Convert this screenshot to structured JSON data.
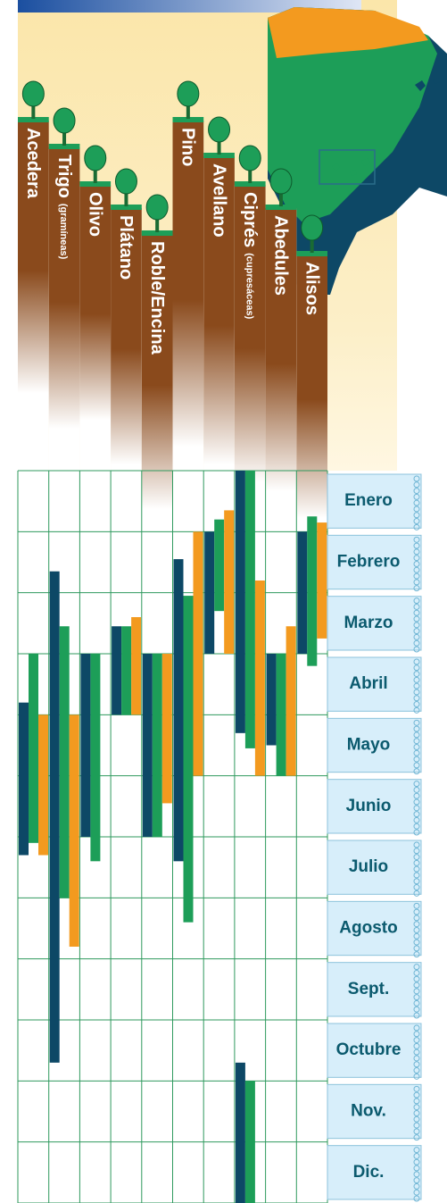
{
  "chart_data": {
    "type": "range",
    "categories": [
      "Acedera",
      "Trigo",
      "Olivo",
      "Plátano",
      "Roble/Encina",
      "Pino",
      "Avellano",
      "Ciprés",
      "Abedules",
      "Alisos"
    ],
    "category_notes": [
      null,
      "(gramíneas)",
      null,
      null,
      null,
      null,
      null,
      "(cupresáceas)",
      null,
      null
    ],
    "months": [
      "Enero",
      "Febrero",
      "Marzo",
      "Abril",
      "Mayo",
      "Junio",
      "Julio",
      "Agosto",
      "Sept.",
      "Octubre",
      "Nov.",
      "Dic."
    ],
    "ylim": [
      0,
      12
    ],
    "yticks": [
      0,
      1,
      2,
      3,
      4,
      5,
      6,
      7,
      8,
      9,
      10,
      11,
      12
    ],
    "grid": true,
    "series": [
      {
        "color": "#0d4866",
        "values": [
          [
            [
              3.8,
              6.3
            ]
          ],
          [
            [
              1.65,
              9.7
            ]
          ],
          [
            [
              3.0,
              6.0
            ]
          ],
          [
            [
              2.55,
              4.0
            ]
          ],
          [
            [
              3.0,
              6.0
            ]
          ],
          [
            [
              1.45,
              6.4
            ]
          ],
          [
            [
              1.0,
              3.0
            ]
          ],
          [
            [
              0,
              4.3
            ],
            [
              9.7,
              12
            ]
          ],
          [
            [
              3.0,
              4.5
            ]
          ],
          [
            [
              1.0,
              3.0
            ]
          ]
        ]
      },
      {
        "color": "#1d9e58",
        "values": [
          [
            [
              3.0,
              6.1
            ]
          ],
          [
            [
              2.55,
              7.0
            ]
          ],
          [
            [
              3.0,
              6.4
            ]
          ],
          [
            [
              2.55,
              4.0
            ]
          ],
          [
            [
              3.0,
              6.0
            ]
          ],
          [
            [
              2.05,
              7.4
            ]
          ],
          [
            [
              0.8,
              2.3
            ]
          ],
          [
            [
              0,
              4.55
            ],
            [
              10.0,
              12
            ]
          ],
          [
            [
              3.0,
              5.0
            ]
          ],
          [
            [
              0.75,
              3.2
            ]
          ]
        ]
      },
      {
        "color": "#f39a1f",
        "values": [
          [
            [
              4.0,
              6.3
            ]
          ],
          [
            [
              4.0,
              7.8
            ]
          ],
          [],
          [
            [
              2.4,
              4.0
            ]
          ],
          [
            [
              3.0,
              5.45
            ]
          ],
          [
            [
              1.0,
              5.0
            ]
          ],
          [
            [
              0.65,
              3.0
            ]
          ],
          [
            [
              1.8,
              5.0
            ]
          ],
          [
            [
              2.55,
              5.0
            ]
          ],
          [
            [
              0.85,
              2.75
            ]
          ]
        ]
      }
    ]
  }
}
